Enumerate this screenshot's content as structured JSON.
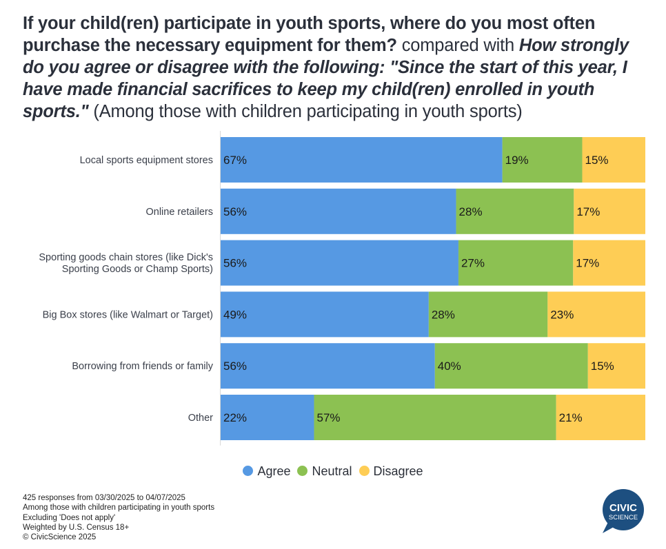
{
  "title": {
    "question1": "If your child(ren) participate in youth sports, where do you most often purchase the necessary equipment for them?",
    "connector": "compared with",
    "question2": "How strongly do you agree or disagree with the following: \"Since the start of this year, I have made financial sacrifices to keep my child(ren) enrolled in youth sports.\"",
    "population": "(Among those with children participating in youth sports)"
  },
  "colors": {
    "agree": "#5699e3",
    "neutral": "#8cc152",
    "disagree": "#fecd55"
  },
  "chart_data": {
    "type": "bar",
    "orientation": "horizontal",
    "stacked": true,
    "normalized": true,
    "categories": [
      "Local sports equipment stores",
      "Online retailers",
      "Sporting goods chain stores (like Dick's Sporting Goods or Champ Sports)",
      "Big Box stores (like Walmart or Target)",
      "Borrowing from friends or family",
      "Other"
    ],
    "series": [
      {
        "name": "Agree",
        "values": [
          67,
          56,
          56,
          49,
          56,
          22
        ]
      },
      {
        "name": "Neutral",
        "values": [
          19,
          28,
          27,
          28,
          40,
          57
        ]
      },
      {
        "name": "Disagree",
        "values": [
          15,
          17,
          17,
          23,
          15,
          21
        ]
      }
    ],
    "value_suffix": "%",
    "legend_position": "bottom-center",
    "grid": false
  },
  "legend": [
    {
      "label": "Agree",
      "color_key": "agree"
    },
    {
      "label": "Neutral",
      "color_key": "neutral"
    },
    {
      "label": "Disagree",
      "color_key": "disagree"
    }
  ],
  "footer": {
    "lines": [
      "425 responses from 03/30/2025 to 04/07/2025",
      "Among those with children participating in youth sports",
      "Excluding 'Does not apply'",
      "Weighted by U.S. Census 18+",
      "© CivicScience 2025"
    ]
  },
  "logo": {
    "line1": "CIVIC",
    "line2": "SCIENCE",
    "color": "#1d4f80"
  }
}
